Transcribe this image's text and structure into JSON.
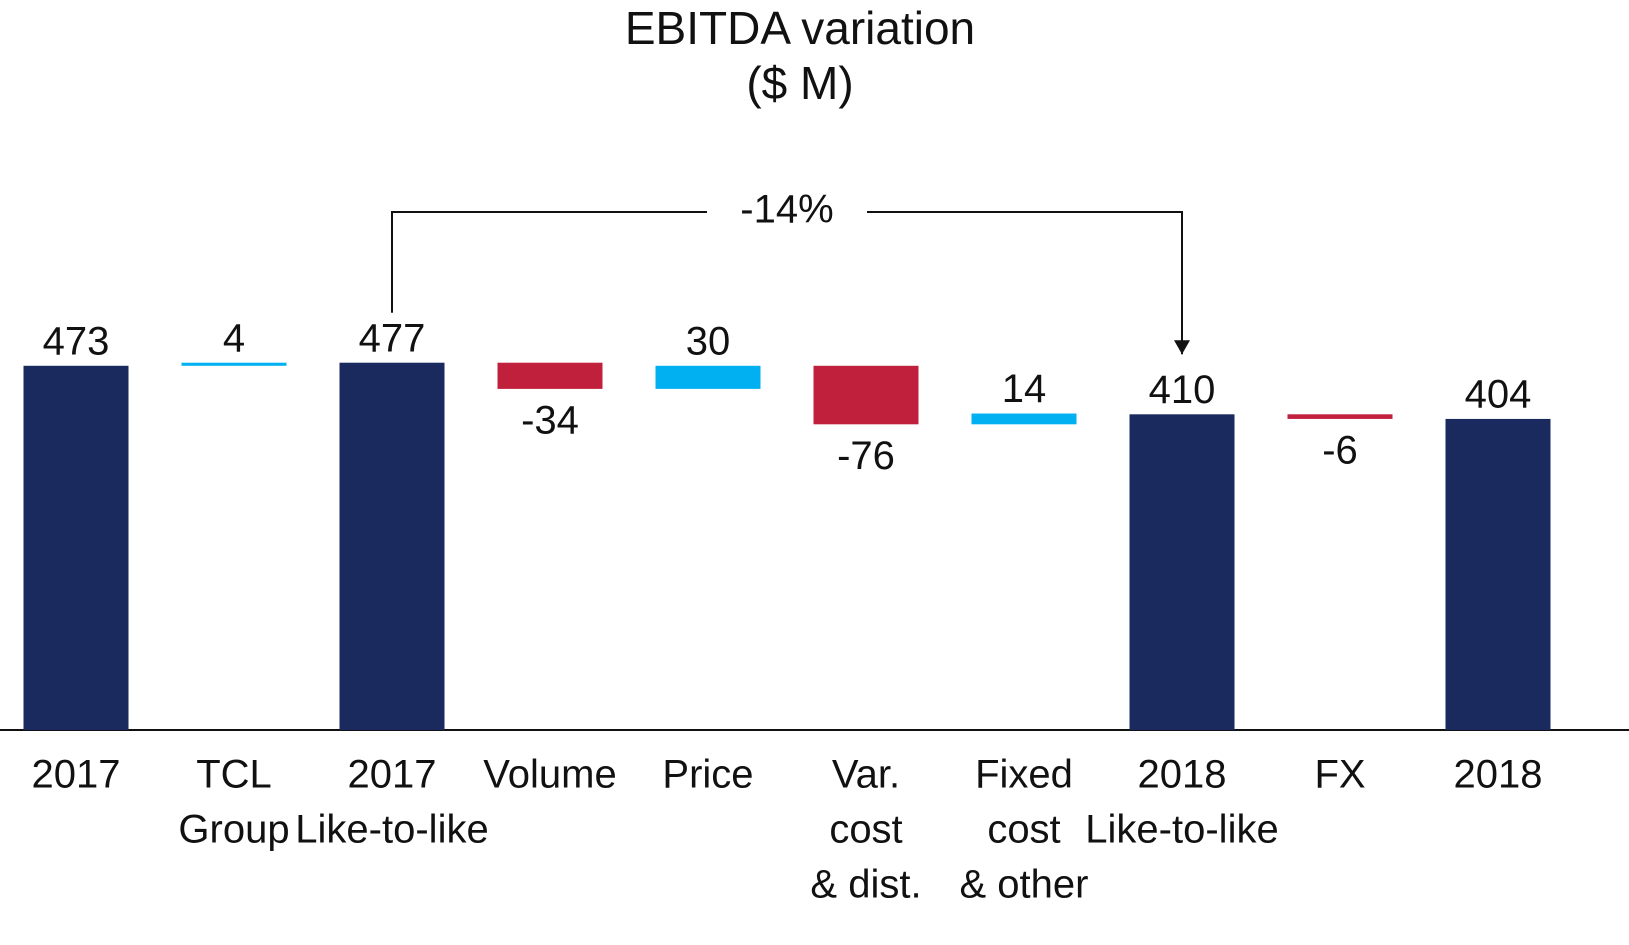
{
  "chart_data": {
    "type": "waterfall",
    "title": [
      "EBITDA variation",
      "($ M)"
    ],
    "categories": [
      [
        "2017"
      ],
      [
        "TCL",
        "Group"
      ],
      [
        "2017",
        "Like-to-like"
      ],
      [
        "Volume"
      ],
      [
        "Price"
      ],
      [
        "Var.",
        "cost",
        "& dist."
      ],
      [
        "Fixed",
        "cost",
        "& other"
      ],
      [
        "2018",
        "Like-to-like"
      ],
      [
        "FX"
      ],
      [
        "2018"
      ]
    ],
    "values": [
      473,
      4,
      477,
      -34,
      30,
      -76,
      14,
      410,
      -6,
      404
    ],
    "measure": [
      "total",
      "relative",
      "total",
      "relative",
      "relative",
      "relative",
      "relative",
      "total",
      "relative",
      "total"
    ],
    "colors": {
      "total": "#1b2a5e",
      "increase": "#00b0f0",
      "decrease": "#c0203c"
    },
    "ylim": [
      0,
      600
    ],
    "annotation": {
      "text": "-14%",
      "from": 2,
      "to": 7
    }
  }
}
